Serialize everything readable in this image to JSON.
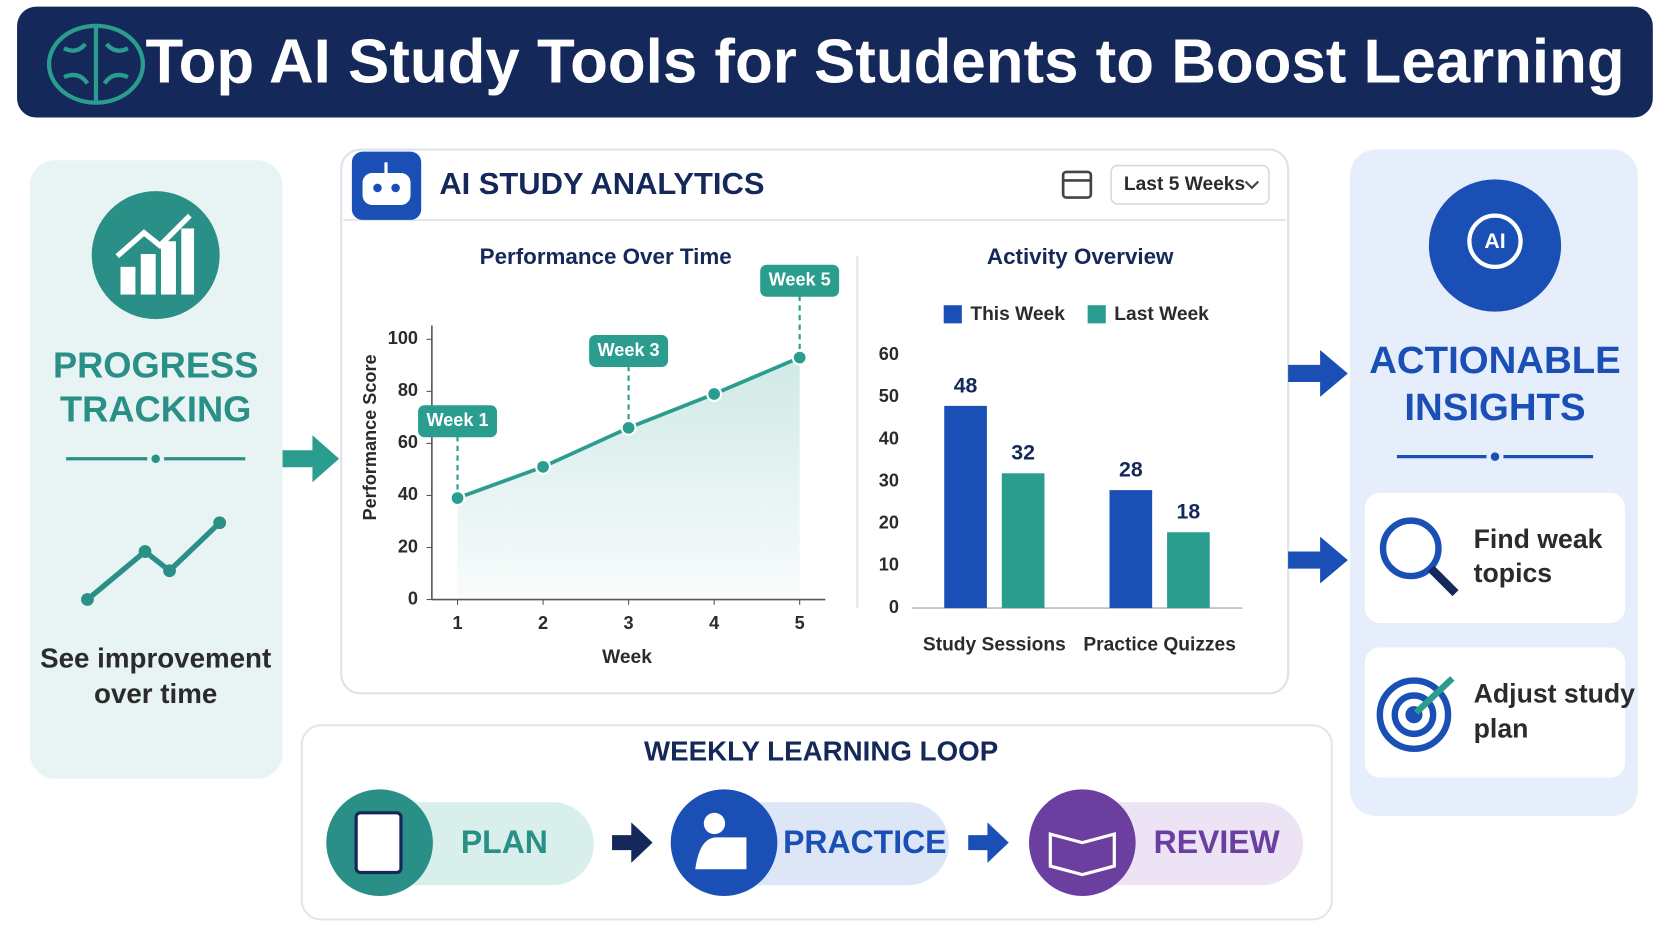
{
  "header": {
    "title": "Top AI Study Tools for Students to Boost Learning"
  },
  "progress": {
    "title": [
      "PROGRESS",
      "TRACKING"
    ],
    "caption": [
      "See improvement",
      "over time"
    ]
  },
  "dashboard": {
    "title": "AI STUDY ANALYTICS",
    "range": "Last 5 Weeks"
  },
  "chart_data": [
    {
      "type": "line",
      "title": "Performance Over Time",
      "x_label": "Week",
      "y_label": "Performance Score",
      "x": [
        1,
        2,
        3,
        4,
        5
      ],
      "values": [
        39,
        51,
        66,
        79,
        93
      ],
      "color": "#2a9d8f",
      "xlim": [
        0.7,
        5.3
      ],
      "xticks": [
        1,
        2,
        3,
        4,
        5
      ],
      "ylim": [
        0,
        100
      ],
      "yticks": [
        0,
        20,
        40,
        60,
        80,
        100
      ],
      "grid": false,
      "annotations": [
        {
          "text": "Week 1",
          "x": 1
        },
        {
          "text": "Week 3",
          "x": 3
        },
        {
          "text": "Week 5",
          "x": 5
        }
      ]
    },
    {
      "type": "bar",
      "title": "Activity Overview",
      "categories": [
        "Study Sessions",
        "Practice Quizzes"
      ],
      "series": [
        {
          "name": "This Week",
          "color": "#1a4fb5",
          "values": [
            48,
            28
          ]
        },
        {
          "name": "Last Week",
          "color": "#2a9d8f",
          "values": [
            32,
            18
          ]
        }
      ],
      "ylim": [
        0,
        60
      ],
      "yticks": [
        0,
        10,
        20,
        30,
        40,
        50,
        60
      ],
      "legend": "top",
      "grid": false
    }
  ],
  "insights": {
    "icon_label": "AI",
    "title": [
      "ACTIONABLE",
      "INSIGHTS"
    ],
    "items": [
      [
        "Find weak",
        "topics"
      ],
      [
        "Adjust study",
        "plan"
      ]
    ]
  },
  "loop": {
    "title": "WEEKLY LEARNING LOOP",
    "steps": [
      "PLAN",
      "PRACTICE",
      "REVIEW"
    ]
  }
}
